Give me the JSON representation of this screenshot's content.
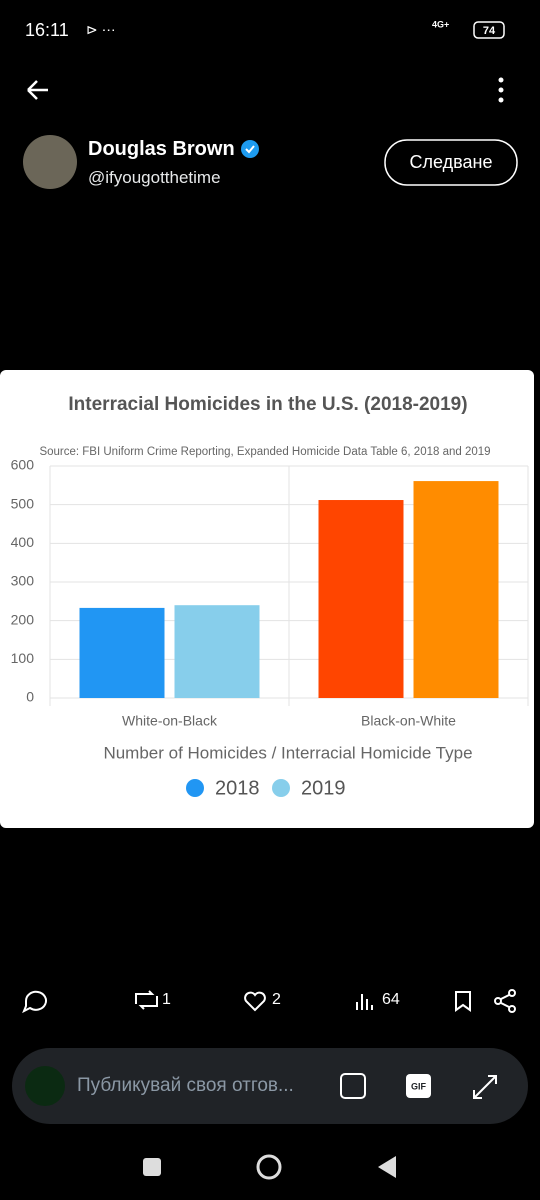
{
  "status_bar": {
    "time": "16:11",
    "network": "4G+",
    "battery": "74"
  },
  "post": {
    "author_name": "Douglas Brown",
    "author_handle": "@ifyougotthetime",
    "follow_button": "Следване"
  },
  "chart_data": {
    "type": "bar",
    "title": "Interracial Homicides in the U.S. (2018-2019)",
    "subtitle": "Source: FBI Uniform Crime Reporting, Expanded Homicide Data Table 6, 2018 and 2019",
    "xlabel": "Number of Homicides / Interracial Homicide Type",
    "categories": [
      "White-on-Black",
      "Black-on-White"
    ],
    "series": [
      {
        "name": "2018",
        "color": "#2196f3",
        "colors": [
          "#2196f3",
          "#ff4500"
        ],
        "values": [
          233,
          512
        ]
      },
      {
        "name": "2019",
        "color": "#87ceeb",
        "colors": [
          "#87ceeb",
          "#ff8c00"
        ],
        "values": [
          240,
          561
        ]
      }
    ],
    "ylim": [
      0,
      600
    ],
    "yticks": [
      0,
      100,
      200,
      300,
      400,
      500,
      600
    ],
    "grid": true
  },
  "actions": {
    "retweets": "1",
    "likes": "2",
    "views": "64"
  },
  "reply_box": {
    "placeholder": "Публикувай своя отгов...",
    "gif_label": "GIF"
  }
}
